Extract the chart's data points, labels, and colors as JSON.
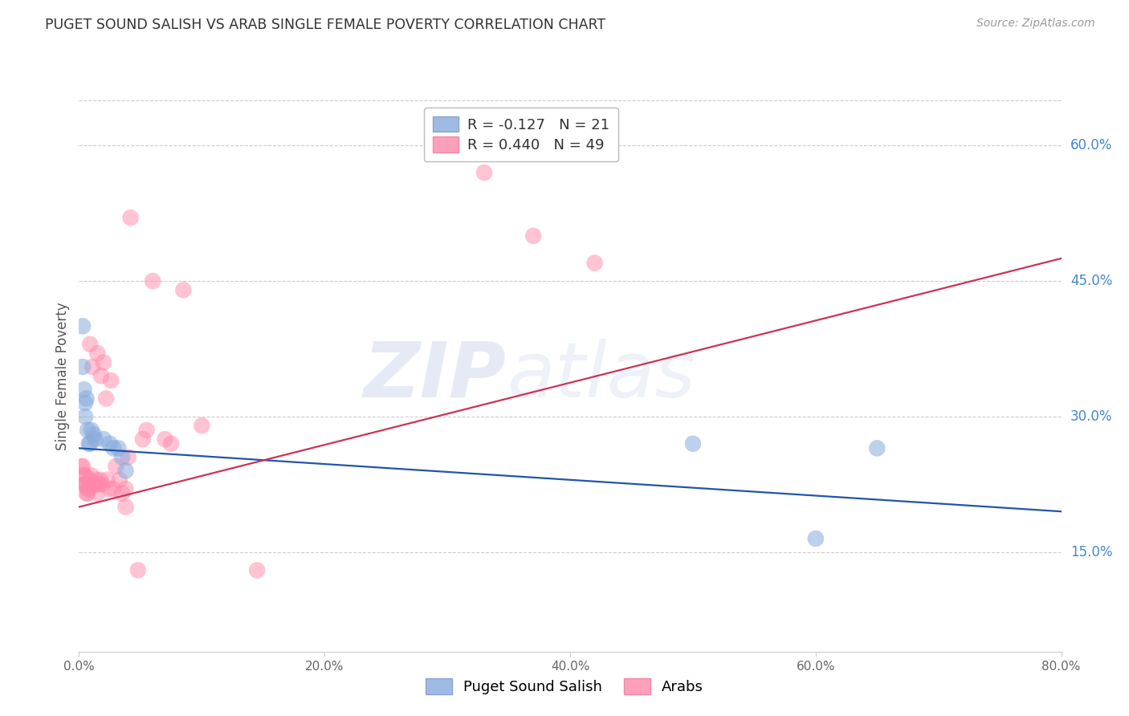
{
  "title": "PUGET SOUND SALISH VS ARAB SINGLE FEMALE POVERTY CORRELATION CHART",
  "source": "Source: ZipAtlas.com",
  "ylabel": "Single Female Poverty",
  "legend_label1": "Puget Sound Salish",
  "legend_label2": "Arabs",
  "R1": -0.127,
  "N1": 21,
  "R2": 0.44,
  "N2": 49,
  "color_blue": "#88AADD",
  "color_pink": "#FF88AA",
  "color_blue_line": "#2255AA",
  "color_pink_line": "#CC3355",
  "watermark_zip": "ZIP",
  "watermark_atlas": "atlas",
  "xmin": 0.0,
  "xmax": 0.8,
  "ymin": 0.04,
  "ymax": 0.65,
  "right_yticks": [
    0.15,
    0.3,
    0.45,
    0.6
  ],
  "right_ytick_labels": [
    "15.0%",
    "30.0%",
    "45.0%",
    "60.0%"
  ],
  "xticks": [
    0.0,
    0.2,
    0.4,
    0.6,
    0.8
  ],
  "xtick_labels": [
    "0.0%",
    "20.0%",
    "40.0%",
    "60.0%",
    "80.0%"
  ],
  "blue_scatter_x": [
    0.003,
    0.003,
    0.004,
    0.005,
    0.005,
    0.006,
    0.007,
    0.008,
    0.009,
    0.01,
    0.012,
    0.013,
    0.02,
    0.025,
    0.028,
    0.032,
    0.035,
    0.038,
    0.5,
    0.6,
    0.65
  ],
  "blue_scatter_y": [
    0.4,
    0.355,
    0.33,
    0.315,
    0.3,
    0.32,
    0.285,
    0.27,
    0.27,
    0.285,
    0.28,
    0.275,
    0.275,
    0.27,
    0.265,
    0.265,
    0.255,
    0.24,
    0.27,
    0.165,
    0.265
  ],
  "pink_scatter_x": [
    0.002,
    0.003,
    0.004,
    0.004,
    0.005,
    0.005,
    0.006,
    0.006,
    0.007,
    0.007,
    0.008,
    0.008,
    0.009,
    0.01,
    0.011,
    0.012,
    0.013,
    0.014,
    0.015,
    0.015,
    0.016,
    0.017,
    0.018,
    0.019,
    0.02,
    0.022,
    0.023,
    0.025,
    0.026,
    0.028,
    0.03,
    0.033,
    0.035,
    0.038,
    0.038,
    0.04,
    0.042,
    0.048,
    0.052,
    0.055,
    0.06,
    0.07,
    0.075,
    0.085,
    0.1,
    0.145,
    0.33,
    0.37,
    0.42
  ],
  "pink_scatter_y": [
    0.245,
    0.245,
    0.235,
    0.225,
    0.235,
    0.225,
    0.225,
    0.215,
    0.22,
    0.215,
    0.23,
    0.22,
    0.38,
    0.235,
    0.355,
    0.225,
    0.225,
    0.23,
    0.215,
    0.37,
    0.225,
    0.23,
    0.345,
    0.225,
    0.36,
    0.32,
    0.23,
    0.22,
    0.34,
    0.22,
    0.245,
    0.23,
    0.215,
    0.22,
    0.2,
    0.255,
    0.52,
    0.13,
    0.275,
    0.285,
    0.45,
    0.275,
    0.27,
    0.44,
    0.29,
    0.13,
    0.57,
    0.5,
    0.47
  ],
  "blue_line_x": [
    0.0,
    0.8
  ],
  "blue_line_y": [
    0.265,
    0.195
  ],
  "pink_line_x": [
    0.0,
    0.8
  ],
  "pink_line_y": [
    0.2,
    0.475
  ],
  "bg_color": "#FFFFFF",
  "grid_color": "#CCCCCC",
  "title_color": "#333333",
  "right_label_color": "#4488CC",
  "source_color": "#999999",
  "axis_color": "#CCCCCC"
}
